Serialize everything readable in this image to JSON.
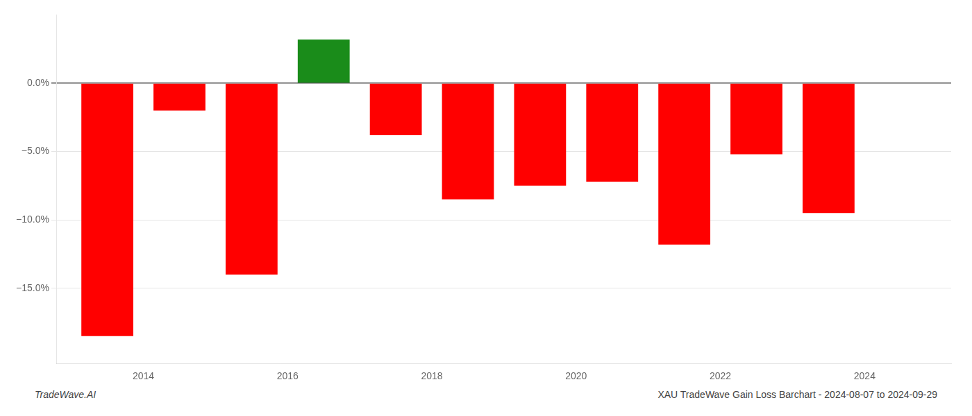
{
  "chart_data": {
    "type": "bar",
    "x": [
      2013.5,
      2014.5,
      2015.5,
      2016.5,
      2017.5,
      2018.5,
      2019.5,
      2020.5,
      2021.5,
      2022.5,
      2023.5
    ],
    "values": [
      -18.5,
      -2.0,
      -14.0,
      3.2,
      -3.8,
      -8.5,
      -7.5,
      -7.2,
      -11.8,
      -5.2,
      -9.5
    ],
    "colors": [
      "#ff0000",
      "#ff0000",
      "#ff0000",
      "#1a8c1a",
      "#ff0000",
      "#ff0000",
      "#ff0000",
      "#ff0000",
      "#ff0000",
      "#ff0000",
      "#ff0000"
    ],
    "xlim": [
      2012.8,
      2025.2
    ],
    "xticks": [
      2014,
      2016,
      2018,
      2020,
      2022,
      2024
    ],
    "ylim": [
      -20.5,
      5.0
    ],
    "yticks": [
      {
        "value": 0.0,
        "label": "0.0%"
      },
      {
        "value": -5.0,
        "label": "−5.0%"
      },
      {
        "value": -10.0,
        "label": "−10.0%"
      },
      {
        "value": -15.0,
        "label": "−15.0%"
      }
    ],
    "grid": true,
    "annotations": [
      "TradeWave.AI",
      "XAU TradeWave Gain Loss Barchart - 2024-08-07 to 2024-09-29"
    ]
  }
}
